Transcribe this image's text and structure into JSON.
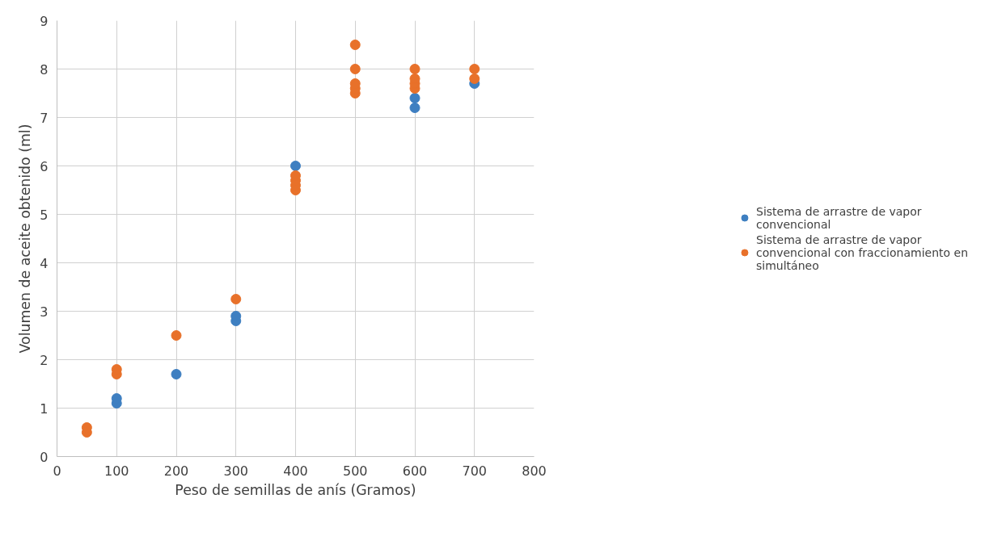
{
  "chart_data": {
    "type": "scatter",
    "xlabel": "Peso de semillas de anís (Gramos)",
    "ylabel": "Volumen de aceite obtenido (ml)",
    "series": [
      {
        "name": "Sistema de arrastre de vapor convencional",
        "color": "#3e7fc1",
        "x": [
          100,
          100,
          200,
          300,
          300,
          400,
          600,
          600,
          700
        ],
        "values": [
          1.1,
          1.2,
          1.7,
          2.8,
          2.9,
          6.0,
          7.2,
          7.4,
          7.7
        ]
      },
      {
        "name": "Sistema de arrastre de vapor convencional con fraccionamiento en simultáneo",
        "color": "#e8712a",
        "x": [
          50,
          50,
          100,
          100,
          200,
          300,
          400,
          400,
          400,
          400,
          500,
          500,
          500,
          500,
          500,
          600,
          600,
          600,
          600,
          700,
          700
        ],
        "values": [
          0.5,
          0.6,
          1.7,
          1.8,
          2.5,
          3.25,
          5.5,
          5.6,
          5.7,
          5.8,
          7.5,
          7.6,
          7.7,
          8.0,
          8.5,
          7.6,
          7.7,
          7.8,
          8.0,
          7.8,
          8.0
        ]
      }
    ],
    "xlim": [
      0,
      800
    ],
    "xticks": [
      0,
      100,
      200,
      300,
      400,
      500,
      600,
      700,
      800
    ],
    "ylim": [
      0,
      9
    ],
    "yticks": [
      0,
      1,
      2,
      3,
      4,
      5,
      6,
      7,
      8,
      9
    ],
    "grid": true,
    "legend": "right",
    "marker": "circle"
  }
}
